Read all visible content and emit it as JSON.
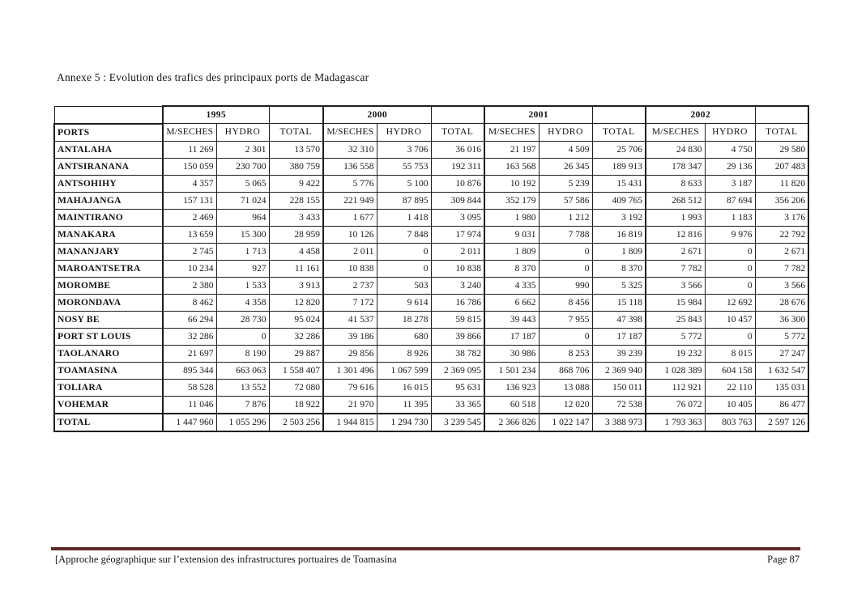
{
  "page_title": "Annexe 5 : Evolution des trafics des principaux ports de Madagascar",
  "footer": {
    "left_text": "[Approche géographique sur l’extension des infrastructures portuaires de Toamasina",
    "page_label": "Page 87",
    "rule_color": "#5e2a28"
  },
  "table": {
    "ports_header": "PORTS",
    "years": [
      "1995",
      "2000",
      "2001",
      "2002"
    ],
    "sub_headers": [
      "M/SECHES",
      "HYDRO",
      "TOTAL"
    ],
    "rows": [
      [
        "ANTALAHA",
        "11 269",
        "2 301",
        "13 570",
        "32 310",
        "3 706",
        "36 016",
        "21 197",
        "4 509",
        "25 706",
        "24 830",
        "4 750",
        "29 580"
      ],
      [
        "ANTSIRANANA",
        "150 059",
        "230 700",
        "380 759",
        "136 558",
        "55 753",
        "192 311",
        "163 568",
        "26 345",
        "189 913",
        "178 347",
        "29 136",
        "207 483"
      ],
      [
        "ANTSOHIHY",
        "4 357",
        "5 065",
        "9 422",
        "5 776",
        "5 100",
        "10 876",
        "10 192",
        "5 239",
        "15 431",
        "8 633",
        "3 187",
        "11 820"
      ],
      [
        "MAHAJANGA",
        "157 131",
        "71 024",
        "228 155",
        "221 949",
        "87 895",
        "309 844",
        "352 179",
        "57 586",
        "409 765",
        "268 512",
        "87 694",
        "356 206"
      ],
      [
        "MAINTIRANO",
        "2 469",
        "964",
        "3 433",
        "1 677",
        "1 418",
        "3 095",
        "1 980",
        "1 212",
        "3 192",
        "1 993",
        "1 183",
        "3 176"
      ],
      [
        "MANAKARA",
        "13 659",
        "15 300",
        "28 959",
        "10 126",
        "7 848",
        "17 974",
        "9 031",
        "7 788",
        "16 819",
        "12 816",
        "9 976",
        "22 792"
      ],
      [
        "MANANJARY",
        "2 745",
        "1 713",
        "4 458",
        "2 011",
        "0",
        "2 011",
        "1 809",
        "0",
        "1 809",
        "2 671",
        "0",
        "2 671"
      ],
      [
        "MAROANTSETRA",
        "10 234",
        "927",
        "11 161",
        "10 838",
        "0",
        "10 838",
        "8 370",
        "0",
        "8 370",
        "7 782",
        "0",
        "7 782"
      ],
      [
        "MOROMBE",
        "2 380",
        "1 533",
        "3 913",
        "2 737",
        "503",
        "3 240",
        "4 335",
        "990",
        "5 325",
        "3 566",
        "0",
        "3 566"
      ],
      [
        "MORONDAVA",
        "8 462",
        "4 358",
        "12 820",
        "7 172",
        "9 614",
        "16 786",
        "6 662",
        "8 456",
        "15 118",
        "15 984",
        "12 692",
        "28 676"
      ],
      [
        "NOSY BE",
        "66 294",
        "28 730",
        "95 024",
        "41 537",
        "18 278",
        "59 815",
        "39 443",
        "7 955",
        "47 398",
        "25 843",
        "10 457",
        "36 300"
      ],
      [
        "PORT ST  LOUIS",
        "32 286",
        "0",
        "32 286",
        "39 186",
        "680",
        "39 866",
        "17 187",
        "0",
        "17 187",
        "5 772",
        "0",
        "5 772"
      ],
      [
        "TAOLANARO",
        "21 697",
        "8 190",
        "29 887",
        "29 856",
        "8 926",
        "38 782",
        "30 986",
        "8 253",
        "39 239",
        "19 232",
        "8 015",
        "27 247"
      ],
      [
        "TOAMASINA",
        "895 344",
        "663 063",
        "1 558 407",
        "1 301 496",
        "1 067 599",
        "2 369 095",
        "1 501 234",
        "868 706",
        "2 369 940",
        "1 028 389",
        "604 158",
        "1 632 547"
      ],
      [
        "TOLIARA",
        "58 528",
        "13 552",
        "72 080",
        "79 616",
        "16 015",
        "95 631",
        "136 923",
        "13 088",
        "150 011",
        "112 921",
        "22 110",
        "135 031"
      ],
      [
        "VOHEMAR",
        "11 046",
        "7 876",
        "18 922",
        "21 970",
        "11 395",
        "33 365",
        "60 518",
        "12 020",
        "72 538",
        "76 072",
        "10 405",
        "86 477"
      ]
    ],
    "total_row": [
      "TOTAL",
      "1 447 960",
      "1 055 296",
      "2 503 256",
      "1 944 815",
      "1 294 730",
      "3 239 545",
      "2 366 826",
      "1 022 147",
      "3 388 973",
      "1 793 363",
      "803 763",
      "2 597 126"
    ]
  }
}
